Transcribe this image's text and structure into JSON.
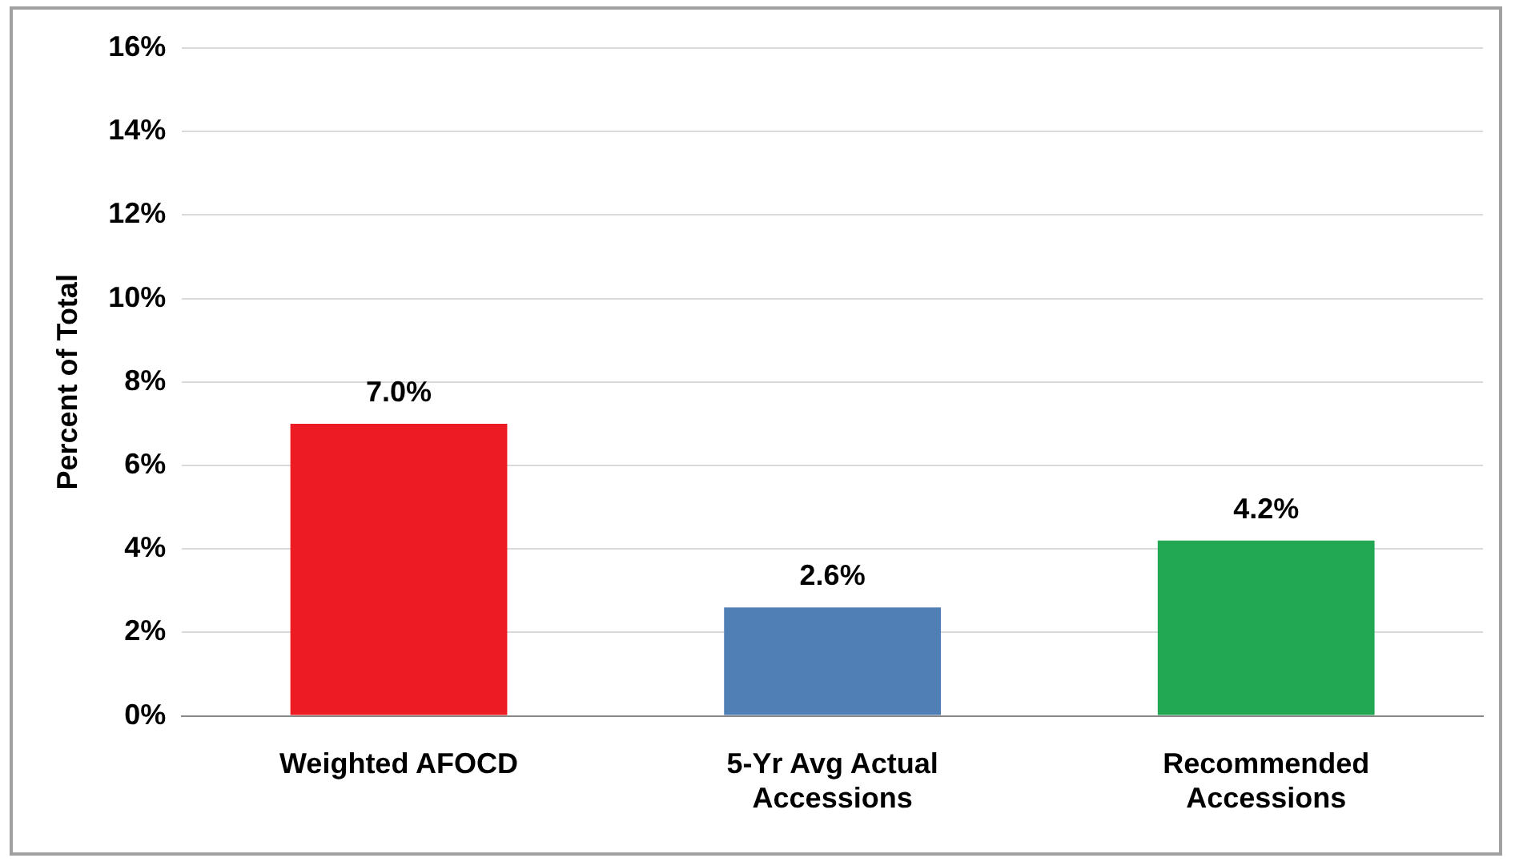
{
  "chart_data": {
    "type": "bar",
    "ylabel": "Percent of Total",
    "categories": [
      "Weighted AFOCD",
      "5-Yr Avg Actual Accessions",
      "Recommended Accessions"
    ],
    "values": [
      7.0,
      2.6,
      4.2
    ],
    "colors": [
      "#ed1c24",
      "#4f7fb5",
      "#22a852"
    ],
    "value_labels": [
      "7.0%",
      "2.6%",
      "4.2%"
    ],
    "ylim": [
      0,
      16
    ],
    "yticks": [
      {
        "value": 0,
        "label": "0%"
      },
      {
        "value": 2,
        "label": "2%"
      },
      {
        "value": 4,
        "label": "4%"
      },
      {
        "value": 6,
        "label": "6%"
      },
      {
        "value": 8,
        "label": "8%"
      },
      {
        "value": 10,
        "label": "10%"
      },
      {
        "value": 12,
        "label": "12%"
      },
      {
        "value": 14,
        "label": "14%"
      },
      {
        "value": 16,
        "label": "16%"
      }
    ],
    "grid": "y",
    "legend": false
  }
}
